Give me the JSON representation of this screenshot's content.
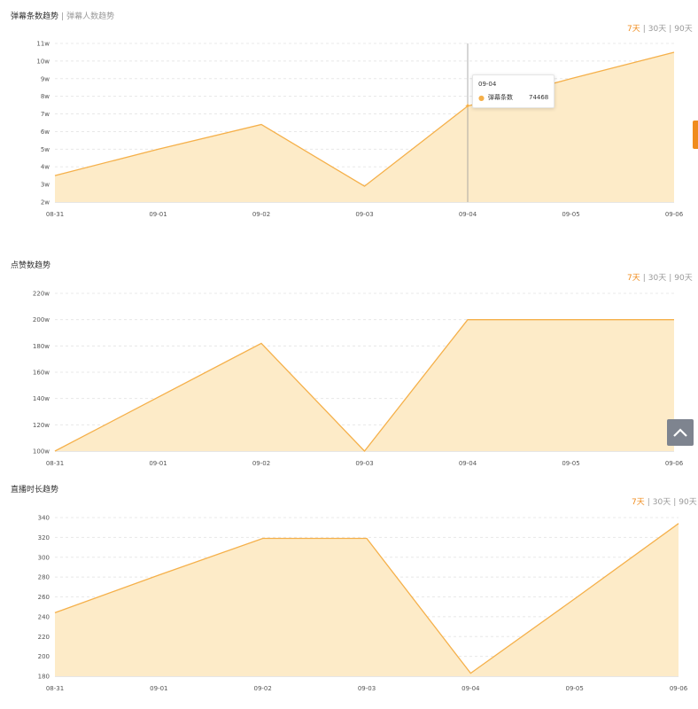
{
  "panels": [
    {
      "title_active": "弹幕条数趋势",
      "title_sep": "|",
      "title_other": "弹幕人数趋势",
      "range": {
        "opt7": "7天",
        "sep": "|",
        "opt30": "30天",
        "opt90": "90天"
      }
    },
    {
      "title_active": "点赞数趋势",
      "range": {
        "opt7": "7天",
        "sep": "|",
        "opt30": "30天",
        "opt90": "90天"
      }
    },
    {
      "title_active": "直播时长趋势",
      "range": {
        "opt7": "7天",
        "sep": "|",
        "opt30": "30天",
        "opt90": "90天"
      }
    }
  ],
  "tooltip": {
    "date": "09-04",
    "series_label": "弹幕条数",
    "value": "74468"
  },
  "colors": {
    "line": "#f5b04a",
    "fill": "#fdebc8",
    "accent": "#f08c1e",
    "grid": "#e8e8e8"
  },
  "icons": {
    "side_tab": "feedback-tab",
    "back_to_top": "chevron-up-icon"
  },
  "chart_data": [
    {
      "type": "area",
      "x": [
        "08-31",
        "09-01",
        "09-02",
        "09-03",
        "09-04",
        "09-05",
        "09-06"
      ],
      "y_ticks": [
        "2w",
        "3w",
        "4w",
        "5w",
        "6w",
        "7w",
        "8w",
        "9w",
        "10w",
        "11w"
      ],
      "ylim": [
        20000,
        110000
      ],
      "series": [
        {
          "values": [
            35000,
            50000,
            64000,
            29000,
            74468,
            90000,
            105000
          ]
        }
      ],
      "highlight_index": 4,
      "grid": true
    },
    {
      "type": "area",
      "x": [
        "08-31",
        "09-01",
        "09-02",
        "09-03",
        "09-04",
        "09-05",
        "09-06"
      ],
      "y_ticks": [
        "100w",
        "120w",
        "140w",
        "160w",
        "180w",
        "200w",
        "220w"
      ],
      "ylim": [
        1000000,
        2200000
      ],
      "series": [
        {
          "values": [
            1000000,
            1410000,
            1820000,
            1000000,
            2000000,
            2000000,
            2000000
          ]
        }
      ],
      "grid": true
    },
    {
      "type": "area",
      "x": [
        "08-31",
        "09-01",
        "09-02",
        "09-03",
        "09-04",
        "09-05",
        "09-06"
      ],
      "y_ticks": [
        "180",
        "200",
        "220",
        "240",
        "260",
        "280",
        "300",
        "320",
        "340"
      ],
      "ylim": [
        180,
        340
      ],
      "series": [
        {
          "values": [
            244,
            282,
            319,
            319,
            183,
            258,
            334
          ]
        }
      ],
      "grid": true
    }
  ]
}
